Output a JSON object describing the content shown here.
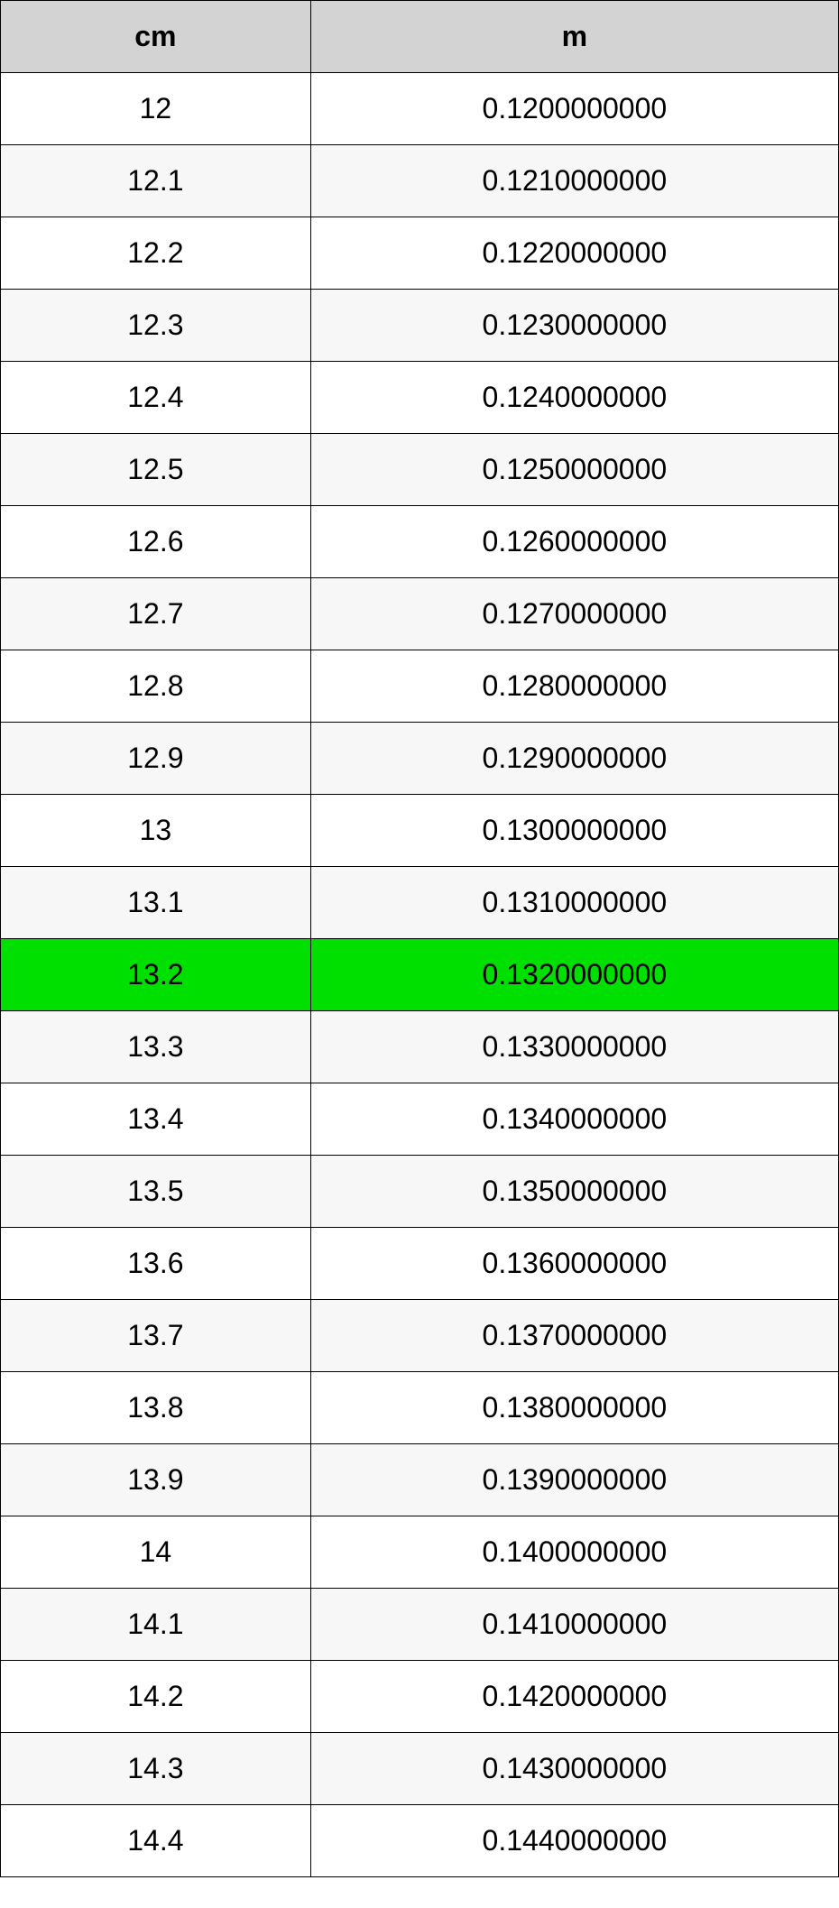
{
  "table": {
    "type": "table",
    "header_background": "#d3d3d3",
    "row_even_background": "#ffffff",
    "row_odd_background": "#f7f7f7",
    "highlight_background": "#00e000",
    "border_color": "#000000",
    "font_size": 32,
    "columns": [
      {
        "label": "cm",
        "width_pct": 37
      },
      {
        "label": "m",
        "width_pct": 63
      }
    ],
    "highlighted_row_index": 12,
    "rows": [
      {
        "cm": "12",
        "m": "0.1200000000"
      },
      {
        "cm": "12.1",
        "m": "0.1210000000"
      },
      {
        "cm": "12.2",
        "m": "0.1220000000"
      },
      {
        "cm": "12.3",
        "m": "0.1230000000"
      },
      {
        "cm": "12.4",
        "m": "0.1240000000"
      },
      {
        "cm": "12.5",
        "m": "0.1250000000"
      },
      {
        "cm": "12.6",
        "m": "0.1260000000"
      },
      {
        "cm": "12.7",
        "m": "0.1270000000"
      },
      {
        "cm": "12.8",
        "m": "0.1280000000"
      },
      {
        "cm": "12.9",
        "m": "0.1290000000"
      },
      {
        "cm": "13",
        "m": "0.1300000000"
      },
      {
        "cm": "13.1",
        "m": "0.1310000000"
      },
      {
        "cm": "13.2",
        "m": "0.1320000000"
      },
      {
        "cm": "13.3",
        "m": "0.1330000000"
      },
      {
        "cm": "13.4",
        "m": "0.1340000000"
      },
      {
        "cm": "13.5",
        "m": "0.1350000000"
      },
      {
        "cm": "13.6",
        "m": "0.1360000000"
      },
      {
        "cm": "13.7",
        "m": "0.1370000000"
      },
      {
        "cm": "13.8",
        "m": "0.1380000000"
      },
      {
        "cm": "13.9",
        "m": "0.1390000000"
      },
      {
        "cm": "14",
        "m": "0.1400000000"
      },
      {
        "cm": "14.1",
        "m": "0.1410000000"
      },
      {
        "cm": "14.2",
        "m": "0.1420000000"
      },
      {
        "cm": "14.3",
        "m": "0.1430000000"
      },
      {
        "cm": "14.4",
        "m": "0.1440000000"
      }
    ]
  }
}
